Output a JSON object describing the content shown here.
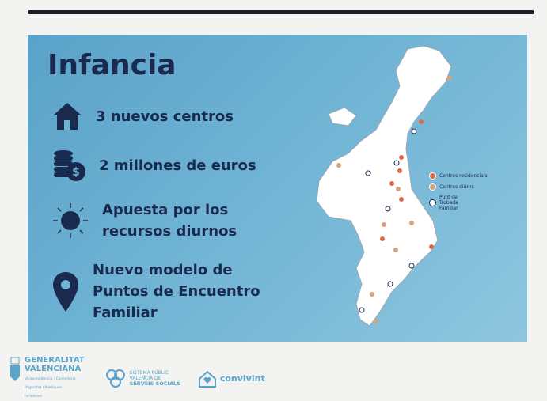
{
  "slide": {
    "title": "Infancia",
    "items": [
      {
        "icon": "house-icon",
        "text": "3 nuevos centros"
      },
      {
        "icon": "coins-icon",
        "text": "2 millones de euros"
      },
      {
        "icon": "sun-icon",
        "text": "Apuesta por los recursos diurnos"
      },
      {
        "icon": "map-pin-icon",
        "text": "Nuevo modelo de Puntos de Encuentro Familiar"
      }
    ],
    "legend": [
      {
        "label": "Centres residencials",
        "color": "#e0674a"
      },
      {
        "label": "Centres diürns",
        "color": "#d9a27a"
      },
      {
        "label": "Punt de Trobada Familiar",
        "color": "#ffffff"
      }
    ]
  },
  "footer": {
    "generalitat": {
      "line1": "GENERALITAT",
      "line2": "VALENCIANA",
      "sub": "Vicepresidència i Conselleria d'Igualtat i Polítiques Inclusives"
    },
    "sistema": {
      "line1": "SISTEMA PÚBLIC",
      "line2": "VALENCIÀ DE",
      "line3": "SERVEIS SOCIALS"
    },
    "convivint": {
      "name": "convivint"
    }
  },
  "colors": {
    "slide_bg": "#6fb3d4",
    "text": "#1a2a4e",
    "footer": "#5aa3c9"
  }
}
